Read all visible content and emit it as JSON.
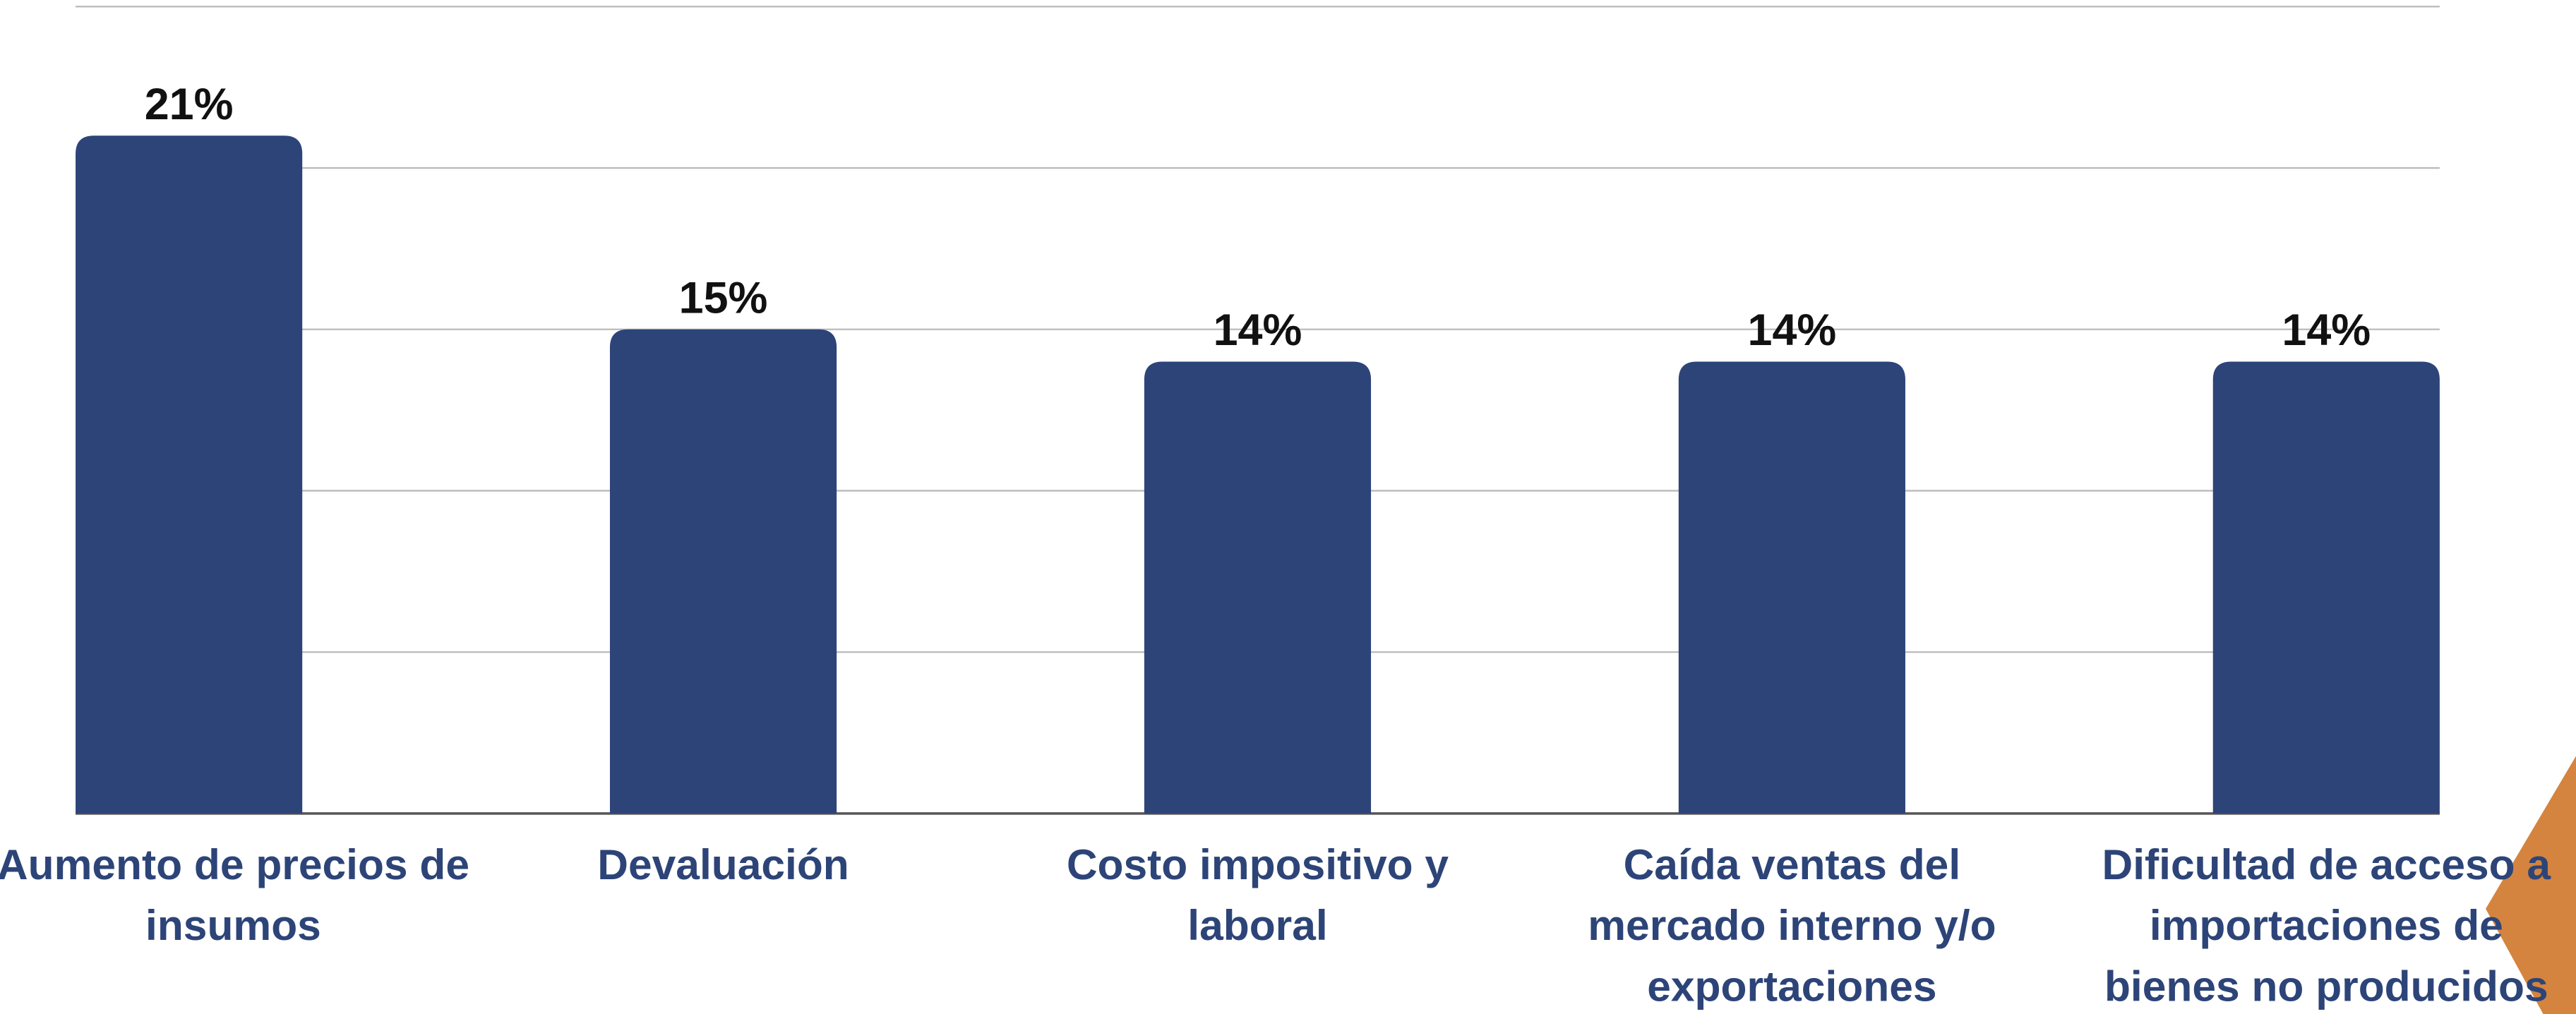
{
  "chart_data": {
    "type": "bar",
    "categories": [
      "Aumento de precios de insumos",
      "Devaluación",
      "Costo impositivo y laboral",
      "Caída ventas del mercado interno y/o exportaciones",
      "Dificultad de acceso a importaciones de bienes no producidos"
    ],
    "values": [
      21,
      15,
      14,
      14,
      14
    ],
    "value_labels": [
      "21%",
      "15%",
      "14%",
      "14%",
      "14%"
    ],
    "color": "#2d4478",
    "ylim": [
      0,
      25
    ],
    "yticks": [
      0,
      5,
      10,
      15,
      20,
      25
    ],
    "grid": true
  }
}
